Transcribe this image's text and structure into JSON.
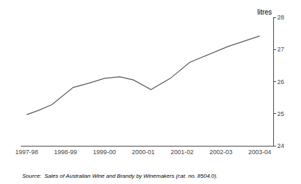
{
  "chart_data": {
    "type": "line",
    "x": [
      0,
      0.3,
      0.65,
      1.2,
      1.6,
      2.0,
      2.4,
      2.75,
      3.2,
      3.7,
      4.2,
      5.2,
      6.0
    ],
    "values": [
      24.97,
      25.1,
      25.28,
      25.82,
      25.95,
      26.1,
      26.15,
      26.05,
      25.75,
      26.1,
      26.6,
      27.1,
      27.42
    ],
    "color": "#555555",
    "xlim": [
      -0.15,
      6.35
    ],
    "xticks": [
      {
        "value": 0,
        "label": "1997-98"
      },
      {
        "value": 1,
        "label": "1998-99"
      },
      {
        "value": 2,
        "label": "1999-00"
      },
      {
        "value": 3,
        "label": "2000-01"
      },
      {
        "value": 4,
        "label": "2001-02"
      },
      {
        "value": 5,
        "label": "2002-03"
      },
      {
        "value": 6,
        "label": "2003-04"
      }
    ],
    "ylim": [
      24,
      28
    ],
    "yticks": [
      24,
      25,
      26,
      27,
      28
    ],
    "ylabel": "litres",
    "annotations": [
      "Source:  Sales of Australian Wine and Brandy by Winemakers (cat. no. 8504.0)."
    ],
    "grid": false
  }
}
